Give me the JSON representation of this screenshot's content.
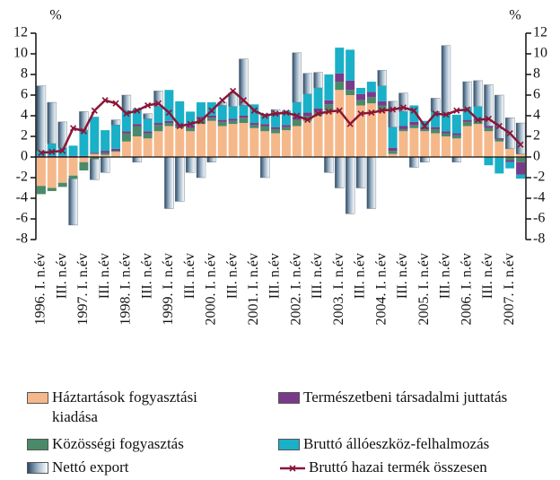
{
  "chart_data": {
    "type": "bar",
    "y_unit": "%",
    "y2_unit": "%",
    "categories": [
      "1996. I. n.év",
      null,
      "III. n.év",
      null,
      "1997. I. n.év",
      null,
      "III. n.év",
      null,
      "1998. I. n.év",
      null,
      "III. n.év",
      null,
      "1999. I. n.év",
      null,
      "III. n.év",
      null,
      "2000. I. n.év",
      null,
      "III. n.év",
      null,
      "2001. I. n.év",
      null,
      "III. n.év",
      null,
      "2002. I. n.év",
      null,
      "III. n.év",
      null,
      "2003. I. n.év",
      null,
      "III. n.év",
      null,
      "2004. I. n.év",
      null,
      "III. n.év",
      null,
      "2005. I. n.év",
      null,
      "III. n.év",
      null,
      "2006. I. n.év",
      null,
      "III. n.év",
      null,
      "2007. I. n.év",
      null
    ],
    "series": [
      {
        "name": "Háztartások fogyasztási kiadása",
        "color": "#f5b88a",
        "values": [
          -2.8,
          -3,
          -2.5,
          -1.8,
          -0.5,
          0.3,
          0.2,
          0.5,
          1.5,
          2,
          1.8,
          2.5,
          3,
          2.8,
          2.5,
          3.2,
          3.5,
          3,
          3.2,
          3.3,
          2.8,
          2.5,
          2.3,
          2.6,
          3,
          3.5,
          4,
          4.5,
          6.5,
          6,
          5,
          5.2,
          4.5,
          0.3,
          2.5,
          2.8,
          2.5,
          2.3,
          2,
          1.8,
          3,
          3.2,
          2.5,
          1.5,
          0.8,
          0.3
        ]
      },
      {
        "name": "Közösségi fogyasztás",
        "color": "#4a8a6a",
        "values": [
          -0.8,
          -0.3,
          -0.4,
          -0.3,
          -0.8,
          -0.2,
          0.2,
          0.1,
          0.8,
          1,
          0.5,
          0.6,
          0.3,
          0.2,
          0.3,
          0.5,
          0.3,
          0.4,
          0.3,
          0.5,
          0.3,
          0.5,
          0.4,
          0.3,
          0.6,
          0.5,
          0.4,
          0.6,
          0.8,
          0.5,
          0.5,
          0.6,
          0.5,
          0.3,
          0.2,
          0.3,
          0.2,
          0.4,
          0.3,
          0.3,
          0.4,
          0.3,
          0.3,
          0.2,
          -0.3,
          -0.5
        ]
      },
      {
        "name": "Természetbeni társadalmi juttatás",
        "color": "#7a3a8a",
        "values": [
          0.1,
          0.1,
          0.1,
          0.1,
          0.1,
          0.1,
          0.2,
          0.2,
          0.2,
          0.2,
          0.2,
          0.2,
          0.2,
          0.2,
          0.2,
          0.2,
          0.2,
          0.2,
          0.2,
          0.2,
          0.2,
          0.2,
          0.2,
          0.2,
          0.3,
          0.3,
          0.3,
          0.4,
          0.8,
          0.9,
          0.6,
          0.5,
          0.4,
          0.3,
          0.3,
          0.3,
          0.2,
          0.2,
          0.2,
          0.2,
          0.2,
          0.2,
          0.2,
          0.1,
          -0.2,
          -1.2
        ]
      },
      {
        "name": "Bruttó állóeszköz-felhalmozás",
        "color": "#1ab0c8",
        "values": [
          0.5,
          1.2,
          0.8,
          1,
          2.5,
          3.5,
          2,
          2.3,
          2,
          1.5,
          1.2,
          1.6,
          3,
          2.2,
          1.4,
          1.4,
          1.3,
          1.4,
          1.2,
          1,
          1.8,
          1,
          1.2,
          1.4,
          1.4,
          1.8,
          2,
          2.5,
          2.5,
          3,
          0.6,
          1,
          1.5,
          2,
          1.4,
          1.6,
          0.6,
          1.5,
          1.8,
          1.8,
          1.2,
          1.2,
          -0.8,
          -1.6,
          -0.6,
          -0.4
        ]
      },
      {
        "name": "Nettó export",
        "color": "#2e4a66",
        "values": [
          6.3,
          4,
          2.5,
          -4.5,
          1.8,
          -2,
          -1.5,
          0.5,
          1.5,
          -0.5,
          0.5,
          1.5,
          -5,
          -4.3,
          -1.5,
          -2,
          -0.5,
          0.3,
          1.3,
          4.5,
          0,
          -2,
          0.5,
          0,
          4.8,
          2,
          1.5,
          -1.5,
          -3,
          -5.5,
          -3,
          -5,
          1.5,
          2.5,
          1.8,
          -1,
          -0.5,
          1.3,
          6.5,
          -0.5,
          2.5,
          2.5,
          4,
          4.2,
          3,
          3
        ]
      }
    ],
    "line": {
      "name": "Bruttó hazai termék összesen",
      "color": "#8b1538",
      "values": [
        0.4,
        0.5,
        0.6,
        2.8,
        2.5,
        4.5,
        5.5,
        5.2,
        4.2,
        4.5,
        5,
        5.2,
        4.3,
        3,
        3.2,
        3.5,
        4.5,
        5.5,
        6.4,
        5.5,
        4.5,
        4,
        4.2,
        4.3,
        4,
        3.6,
        4.2,
        4.4,
        4.5,
        3.2,
        4.2,
        4.3,
        4.5,
        4.6,
        4.8,
        4.5,
        3,
        4.2,
        4.1,
        4.5,
        4.6,
        3.6,
        3.7,
        3,
        2.3,
        1.2
      ]
    },
    "ylim": [
      -8,
      12
    ],
    "yticks": [
      -8,
      -6,
      -4,
      -2,
      0,
      2,
      4,
      6,
      8,
      10,
      12
    ],
    "y2lim": [
      -8,
      12
    ],
    "y2ticks": [
      -8,
      -6,
      -4,
      -2,
      0,
      2,
      4,
      6,
      8,
      10,
      12
    ]
  }
}
